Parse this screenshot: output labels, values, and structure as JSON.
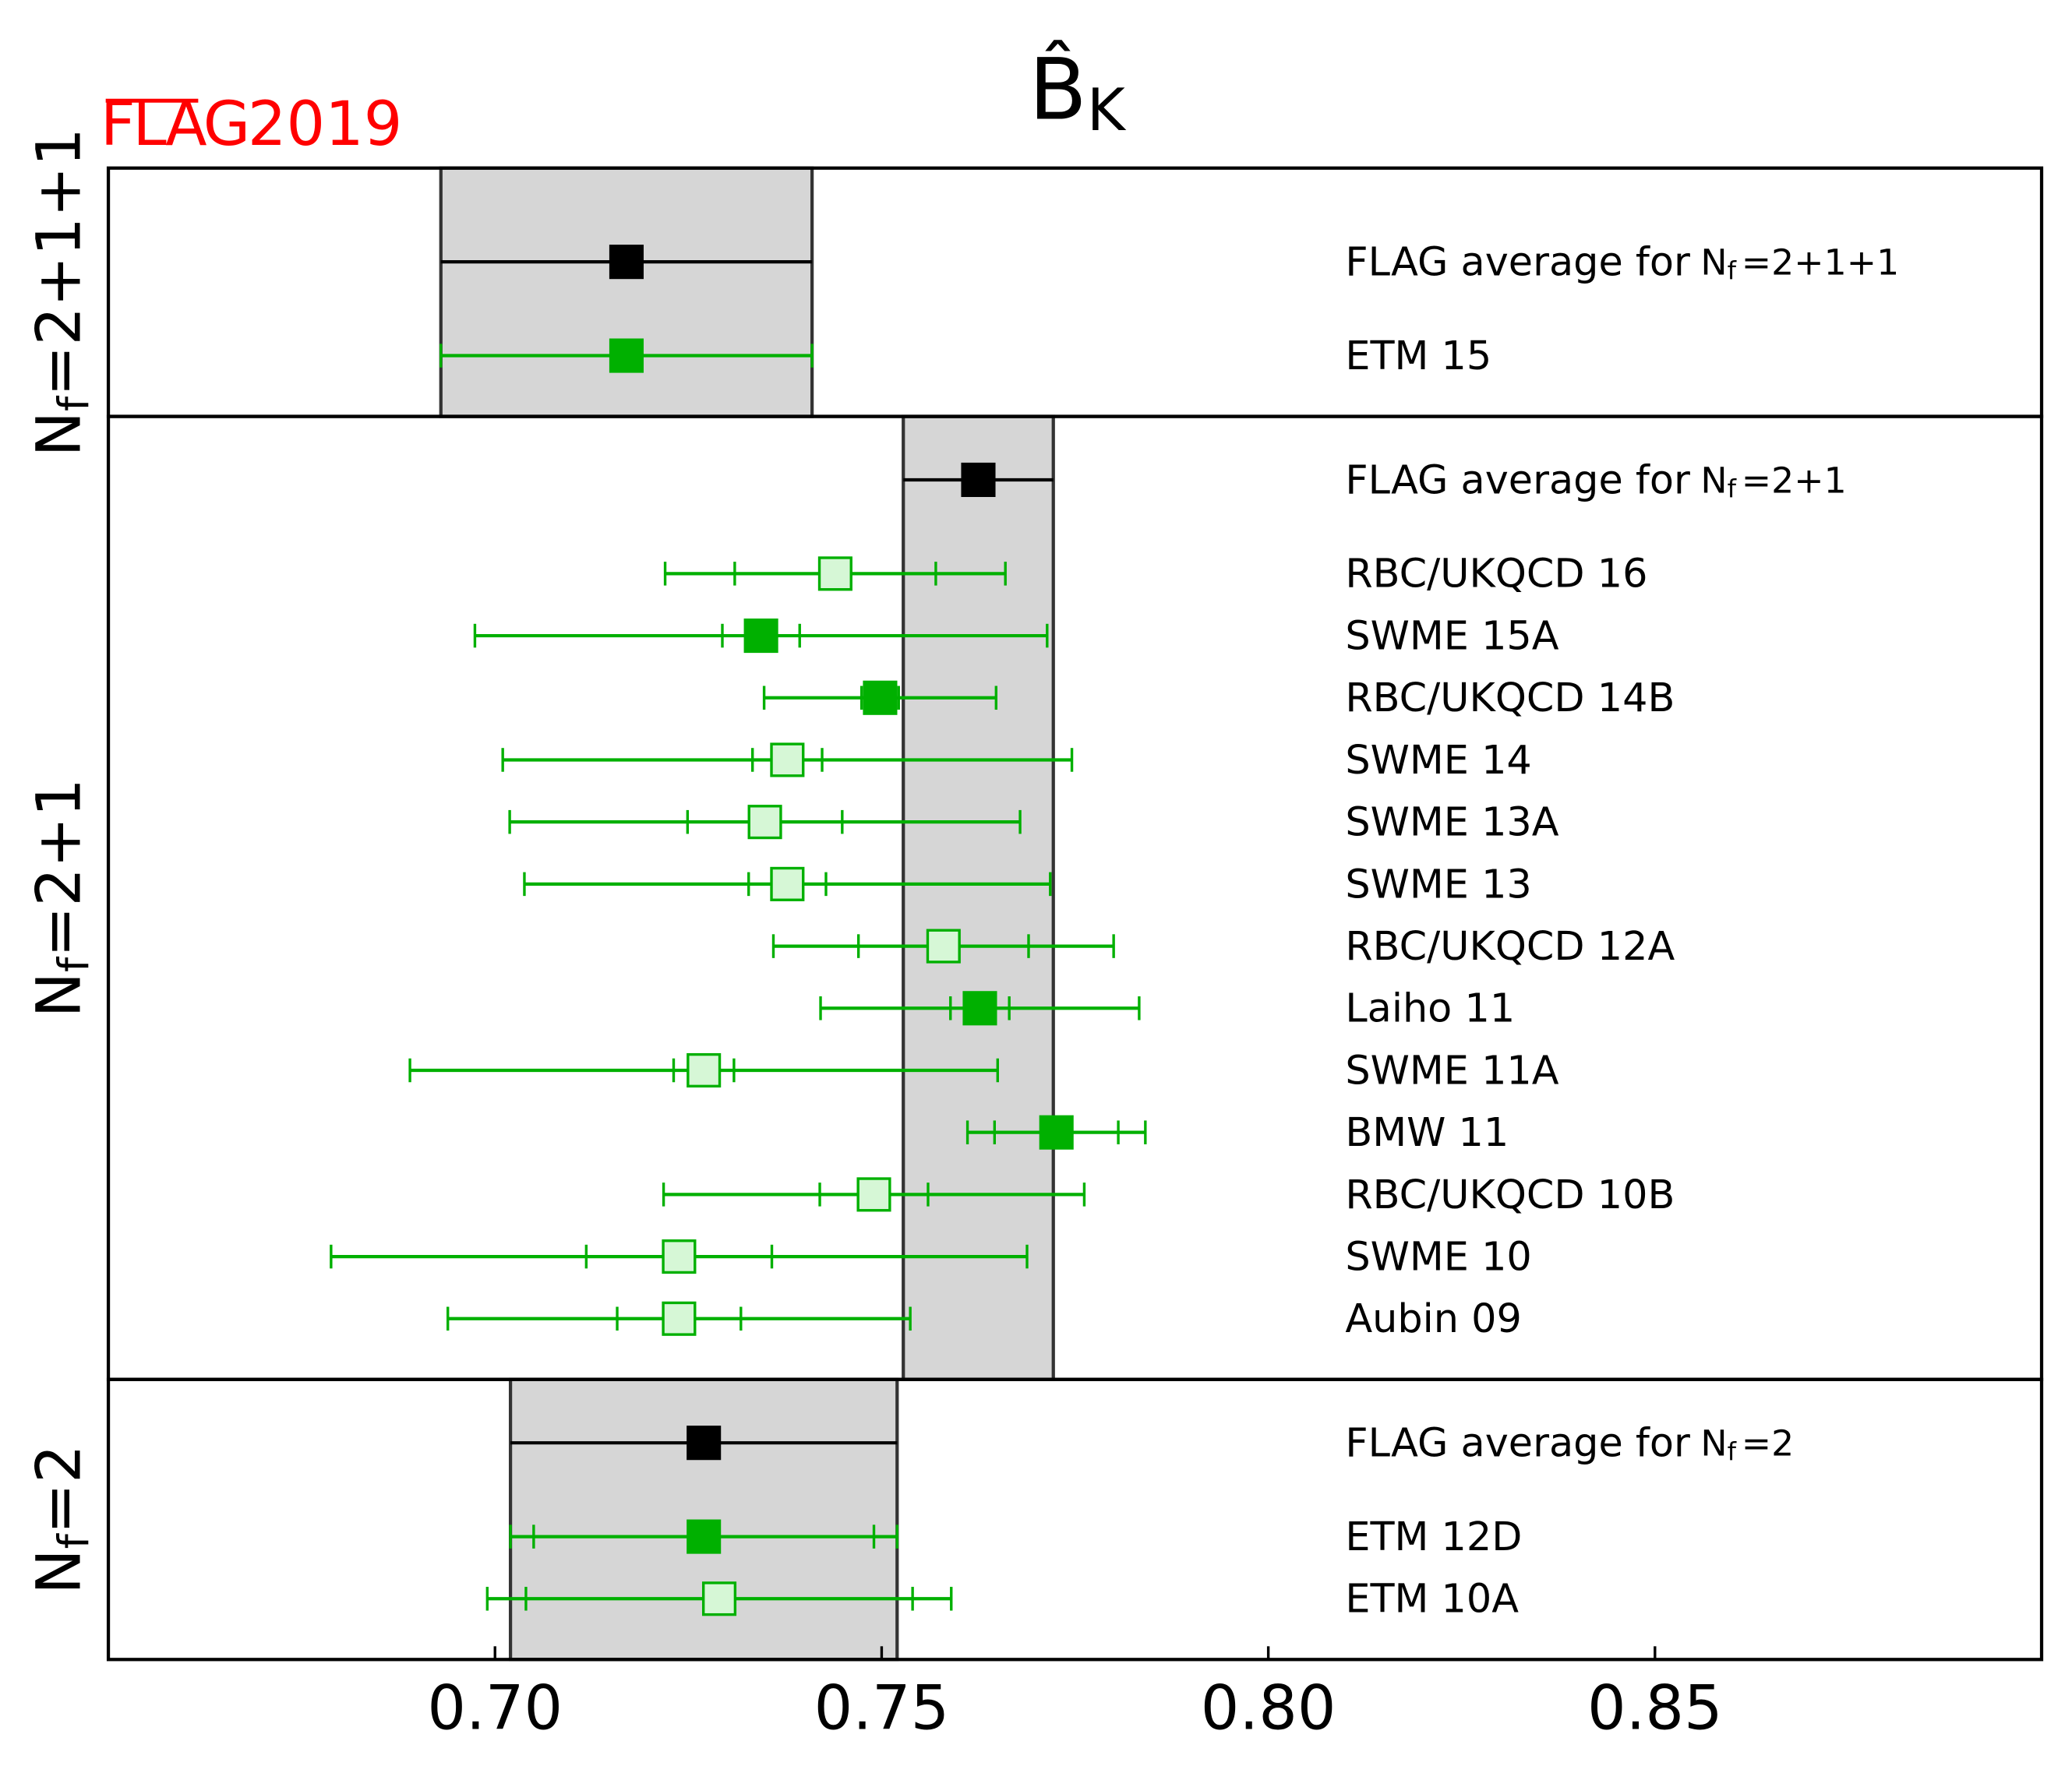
{
  "chart_data": {
    "type": "forest",
    "title": "B̂",
    "title_subscript": "K",
    "logo": "FLAG",
    "logo_year": "2019",
    "flavour_symbol": "N",
    "flavour_subscript": "f",
    "xlim": [
      0.65,
      0.9
    ],
    "xticks": [
      {
        "value": 0.7,
        "label": "0.70"
      },
      {
        "value": 0.75,
        "label": "0.75"
      },
      {
        "value": 0.8,
        "label": "0.80"
      },
      {
        "value": 0.85,
        "label": "0.85"
      }
    ],
    "average_color": "#000000",
    "result_color": "#00b000",
    "open_fill": "#d6f7d6",
    "band_color": "#d6d6d6",
    "logo_color": "#ff0000",
    "panels": [
      {
        "nf": "=2+1+1",
        "average": {
          "label": "FLAG average for",
          "value": 0.717,
          "error": 0.024
        },
        "results": [
          {
            "name": "ETM 15",
            "value": 0.717,
            "total_error": 0.024,
            "filled": true
          }
        ]
      },
      {
        "nf": "=2+1",
        "average": {
          "label": "FLAG average for",
          "value": 0.7625,
          "error": 0.0097
        },
        "results": [
          {
            "name": "RBC/UKQCD 16",
            "value": 0.744,
            "stat_error": 0.013,
            "total_error": 0.022,
            "filled": false
          },
          {
            "name": "SWME 15A",
            "value": 0.7344,
            "stat_error": 0.005,
            "total_error": 0.037,
            "filled": true
          },
          {
            "name": "RBC/UKQCD 14B",
            "value": 0.7498,
            "stat_error": 0.0024,
            "total_error": 0.015,
            "filled": true
          },
          {
            "name": "SWME 14",
            "value": 0.7378,
            "stat_error": 0.0045,
            "total_error": 0.0368,
            "filled": false
          },
          {
            "name": "SWME 13A",
            "value": 0.7349,
            "stat_error": 0.01,
            "total_error": 0.033,
            "filled": false
          },
          {
            "name": "SWME 13",
            "value": 0.7378,
            "stat_error": 0.005,
            "total_error": 0.034,
            "filled": false
          },
          {
            "name": "RBC/UKQCD 12A",
            "value": 0.758,
            "stat_error": 0.011,
            "total_error": 0.022,
            "filled": false
          },
          {
            "name": "Laiho 11",
            "value": 0.7627,
            "stat_error": 0.0038,
            "total_error": 0.0206,
            "filled": true
          },
          {
            "name": "SWME 11A",
            "value": 0.727,
            "stat_error": 0.0039,
            "total_error": 0.038,
            "filled": false
          },
          {
            "name": "BMW 11",
            "value": 0.7726,
            "stat_error": 0.008,
            "total_error": 0.0115,
            "filled": true
          },
          {
            "name": "RBC/UKQCD 10B",
            "value": 0.749,
            "stat_error": 0.007,
            "total_error": 0.0272,
            "filled": false
          },
          {
            "name": "SWME 10",
            "value": 0.7238,
            "stat_error": 0.012,
            "total_error": 0.045,
            "filled": false
          },
          {
            "name": "Aubin 09",
            "value": 0.7238,
            "stat_error": 0.008,
            "total_error": 0.0299,
            "filled": false
          }
        ]
      },
      {
        "nf": "=2",
        "average": {
          "label": "FLAG average for",
          "value": 0.727,
          "error": 0.025
        },
        "results": [
          {
            "name": "ETM 12D",
            "value": 0.727,
            "stat_error": 0.022,
            "total_error": 0.025,
            "filled": true
          },
          {
            "name": "ETM 10A",
            "value": 0.729,
            "stat_error": 0.025,
            "total_error": 0.03,
            "filled": false
          }
        ]
      }
    ]
  }
}
